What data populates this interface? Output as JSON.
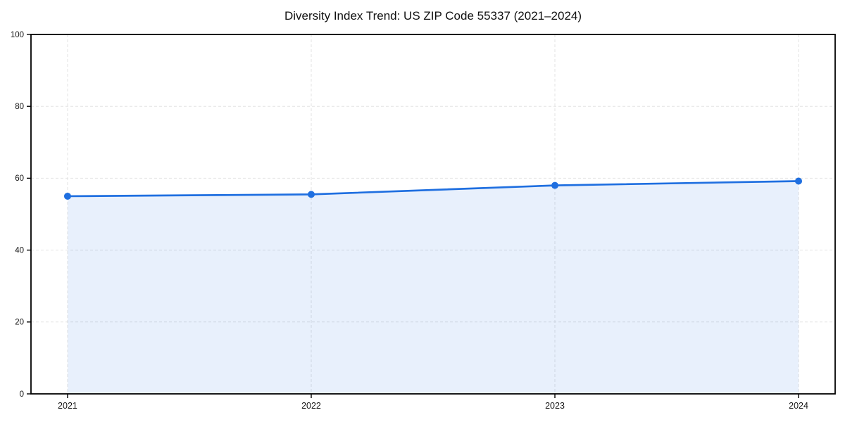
{
  "chart_data": {
    "type": "area",
    "title": "Diversity Index Trend: US ZIP Code 55337 (2021–2024)",
    "categories": [
      "2021",
      "2022",
      "2023",
      "2024"
    ],
    "series": [
      {
        "name": "Diversity Index",
        "values": [
          55.0,
          55.5,
          58.0,
          59.2
        ]
      }
    ],
    "xlabel": "",
    "ylabel": "",
    "ylim": [
      0,
      100
    ],
    "yticks": [
      0,
      20,
      40,
      60,
      80,
      100
    ],
    "grid": "dashed-both-axes",
    "legend": "none",
    "colors": {
      "line": "#1f6fe0",
      "marker": "#1f6fe0",
      "area_fill": "rgba(31,111,224,0.10)",
      "gridline": "#e3e3e3",
      "spine": "#000000",
      "tick_text": "#151515",
      "background": "#ffffff"
    }
  }
}
